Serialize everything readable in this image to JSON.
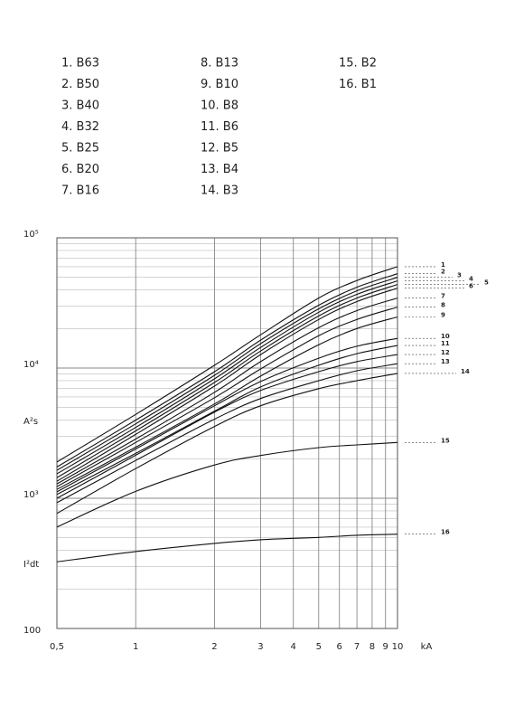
{
  "chart_data": {
    "type": "line",
    "log_x": true,
    "log_y": true,
    "grid": true,
    "color": "#111111",
    "x": [
      0.5,
      1,
      2,
      3,
      5,
      7,
      10
    ],
    "x_unit": "kA",
    "y_labels": [
      "A²s",
      "I²dt"
    ],
    "xlim": [
      0.5,
      10
    ],
    "ylim": [
      100,
      100000
    ],
    "xticks": [
      {
        "value": 0.5,
        "label": "0,5"
      },
      1,
      2,
      3,
      4,
      5,
      6,
      7,
      8,
      9,
      10
    ],
    "yticks": [
      100,
      {
        "value": 1000,
        "label": "10³"
      },
      {
        "value": 10000,
        "label": "10⁴"
      },
      {
        "value": 100000,
        "label": "10⁵"
      }
    ],
    "series": [
      {
        "name": "1.  B63",
        "label": "1",
        "values": [
          1900,
          4400,
          10500,
          18000,
          34500,
          47000,
          60000
        ]
      },
      {
        "name": "2.  B50",
        "label": "2",
        "values": [
          1740,
          3980,
          9380,
          16400,
          30400,
          41800,
          53000
        ]
      },
      {
        "name": "3.  B40",
        "label": "3",
        "values": [
          1640,
          3730,
          8800,
          15400,
          28500,
          39200,
          49700
        ]
      },
      {
        "name": "4.  B32",
        "label": "4",
        "values": [
          1540,
          3500,
          8270,
          14400,
          26800,
          36800,
          46700
        ]
      },
      {
        "name": "5.  B25",
        "label": "5",
        "values": [
          1440,
          3290,
          7760,
          13500,
          25100,
          34500,
          43800
        ]
      },
      {
        "name": "6.  B20",
        "label": "6",
        "values": [
          1350,
          3090,
          7280,
          12700,
          23600,
          32400,
          41100
        ]
      },
      {
        "name": "7.  B16",
        "label": "7",
        "values": [
          1290,
          2850,
          6510,
          11200,
          20400,
          27600,
          34500
        ]
      },
      {
        "name": "8.  B13",
        "label": "8",
        "values": [
          1230,
          2680,
          5920,
          9840,
          17700,
          23600,
          29400
        ]
      },
      {
        "name": "9.  B10",
        "label": "9",
        "values": [
          1170,
          2470,
          5300,
          8670,
          15100,
          20100,
          24700
        ]
      },
      {
        "name": "10. B8",
        "label": "10",
        "values": [
          1120,
          2390,
          5130,
          7880,
          11900,
          14700,
          16900
        ]
      },
      {
        "name": "11. B6",
        "label": "11",
        "values": [
          1070,
          2210,
          4670,
          7160,
          10500,
          12900,
          14900
        ]
      },
      {
        "name": "12. B5",
        "label": "12",
        "values": [
          1000,
          2140,
          4590,
          6730,
          9380,
          11200,
          12700
        ]
      },
      {
        "name": "13. B4",
        "label": "13",
        "values": [
          925,
          1950,
          4050,
          5830,
          8000,
          9530,
          10800
        ]
      },
      {
        "name": "14. B3",
        "label": "14",
        "values": [
          764,
          1690,
          3560,
          5130,
          6940,
          8000,
          9100
        ]
      },
      {
        "name": "15. B2",
        "label": "15",
        "values": [
          600,
          1130,
          1800,
          2130,
          2450,
          2570,
          2680
        ]
      },
      {
        "name": "16. B1",
        "label": "16",
        "values": [
          325,
          390,
          450,
          480,
          500,
          520,
          530
        ]
      }
    ]
  }
}
